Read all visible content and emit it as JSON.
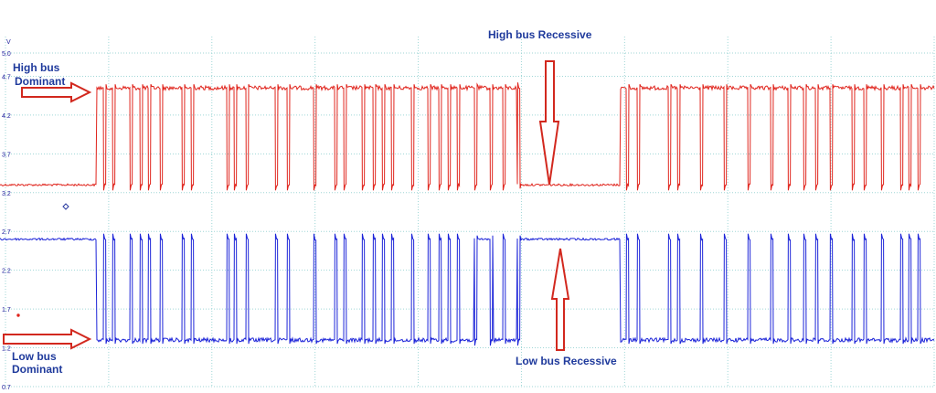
{
  "chart_data": {
    "type": "line",
    "title": "",
    "xlabel": "",
    "ylabel": "V",
    "ylim": [
      0.7,
      5.0
    ],
    "y_ticks": [
      "5.0",
      "4.7",
      "4.2",
      "3.7",
      "3.2",
      "2.7",
      "2.2",
      "1.7",
      "1.2",
      "0.7"
    ],
    "x_ticks": [
      "",
      "",
      "",
      "",
      "",
      "",
      "",
      "",
      "",
      ""
    ],
    "grid": true,
    "series": [
      {
        "key": "can_high",
        "color": "#e0241c",
        "recessive_level": 3.3,
        "dominant_level": 4.55,
        "x_range": [
          0,
          1022
        ],
        "pulse_x": [
          113,
          123,
          142,
          153,
          162,
          175,
          199,
          209,
          248,
          256,
          269,
          301,
          314,
          343,
          366,
          376,
          396,
          408,
          418,
          428,
          450,
          468,
          480,
          490,
          500,
          519,
          536,
          550,
          566,
          685,
          697,
          731,
          741,
          766,
          792,
          818,
          843,
          862,
          879,
          892,
          908,
          932,
          945,
          964,
          985,
          994,
          1004
        ],
        "dominant_segments": [
          [
            106,
            565
          ],
          [
            679,
            1022
          ]
        ]
      },
      {
        "key": "can_low",
        "color": "#1b23d8",
        "recessive_level": 2.6,
        "dominant_level": 1.3,
        "x_range": [
          0,
          1022
        ],
        "pulse_x": [
          113,
          123,
          142,
          153,
          162,
          175,
          199,
          209,
          248,
          256,
          269,
          301,
          314,
          343,
          366,
          376,
          396,
          408,
          418,
          428,
          450,
          468,
          480,
          490,
          500,
          519,
          536,
          550,
          566,
          685,
          697,
          731,
          741,
          766,
          792,
          818,
          843,
          862,
          879,
          892,
          908,
          932,
          945,
          964,
          985,
          994,
          1004
        ],
        "dominant_segments": [
          [
            106,
            518
          ],
          [
            539,
            565
          ],
          [
            679,
            1022
          ]
        ]
      }
    ],
    "annotations": [
      {
        "lines": [
          "High bus",
          "Dominant"
        ],
        "arrow": "right"
      },
      {
        "lines": [
          "High bus Recessive"
        ],
        "arrow": "down"
      },
      {
        "lines": [
          "Low bus Recessive"
        ],
        "arrow": "up"
      },
      {
        "lines": [
          "Low bus",
          "Dominant"
        ],
        "arrow": "right"
      }
    ],
    "colors": {
      "grid": "#9fd6d6",
      "axis_text": "#1a1a9a",
      "annotation_text": "#1f3a9c",
      "arrow_stroke": "#d2281e",
      "arrow_fill": "#ffffff",
      "marker_blue": "#2a3aa0",
      "marker_red": "#e0241c"
    }
  }
}
